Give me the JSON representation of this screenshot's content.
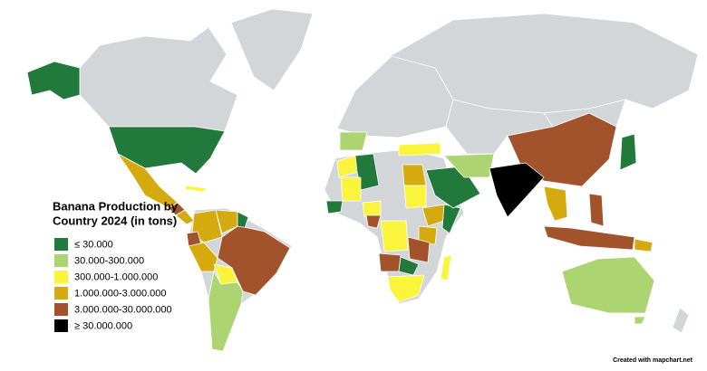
{
  "map": {
    "title": [
      "Banana Production by",
      "Country 2024 (in tons)"
    ],
    "legend": [
      {
        "label": "≤ 30.000",
        "color": "#217a3c"
      },
      {
        "label": "30.000-300.000",
        "color": "#acd572"
      },
      {
        "label": "300.000-1.000.000",
        "color": "#fbf43c"
      },
      {
        "label": "1.000.000-3.000.000",
        "color": "#d5aa0f"
      },
      {
        "label": "3.000.000-30.000.000",
        "color": "#a2532c"
      },
      {
        "label": "≥ 30.000.000",
        "color": "#000000"
      }
    ],
    "no_data_color": "#d3d6d9",
    "credit": "Created with mapchart.net"
  }
}
